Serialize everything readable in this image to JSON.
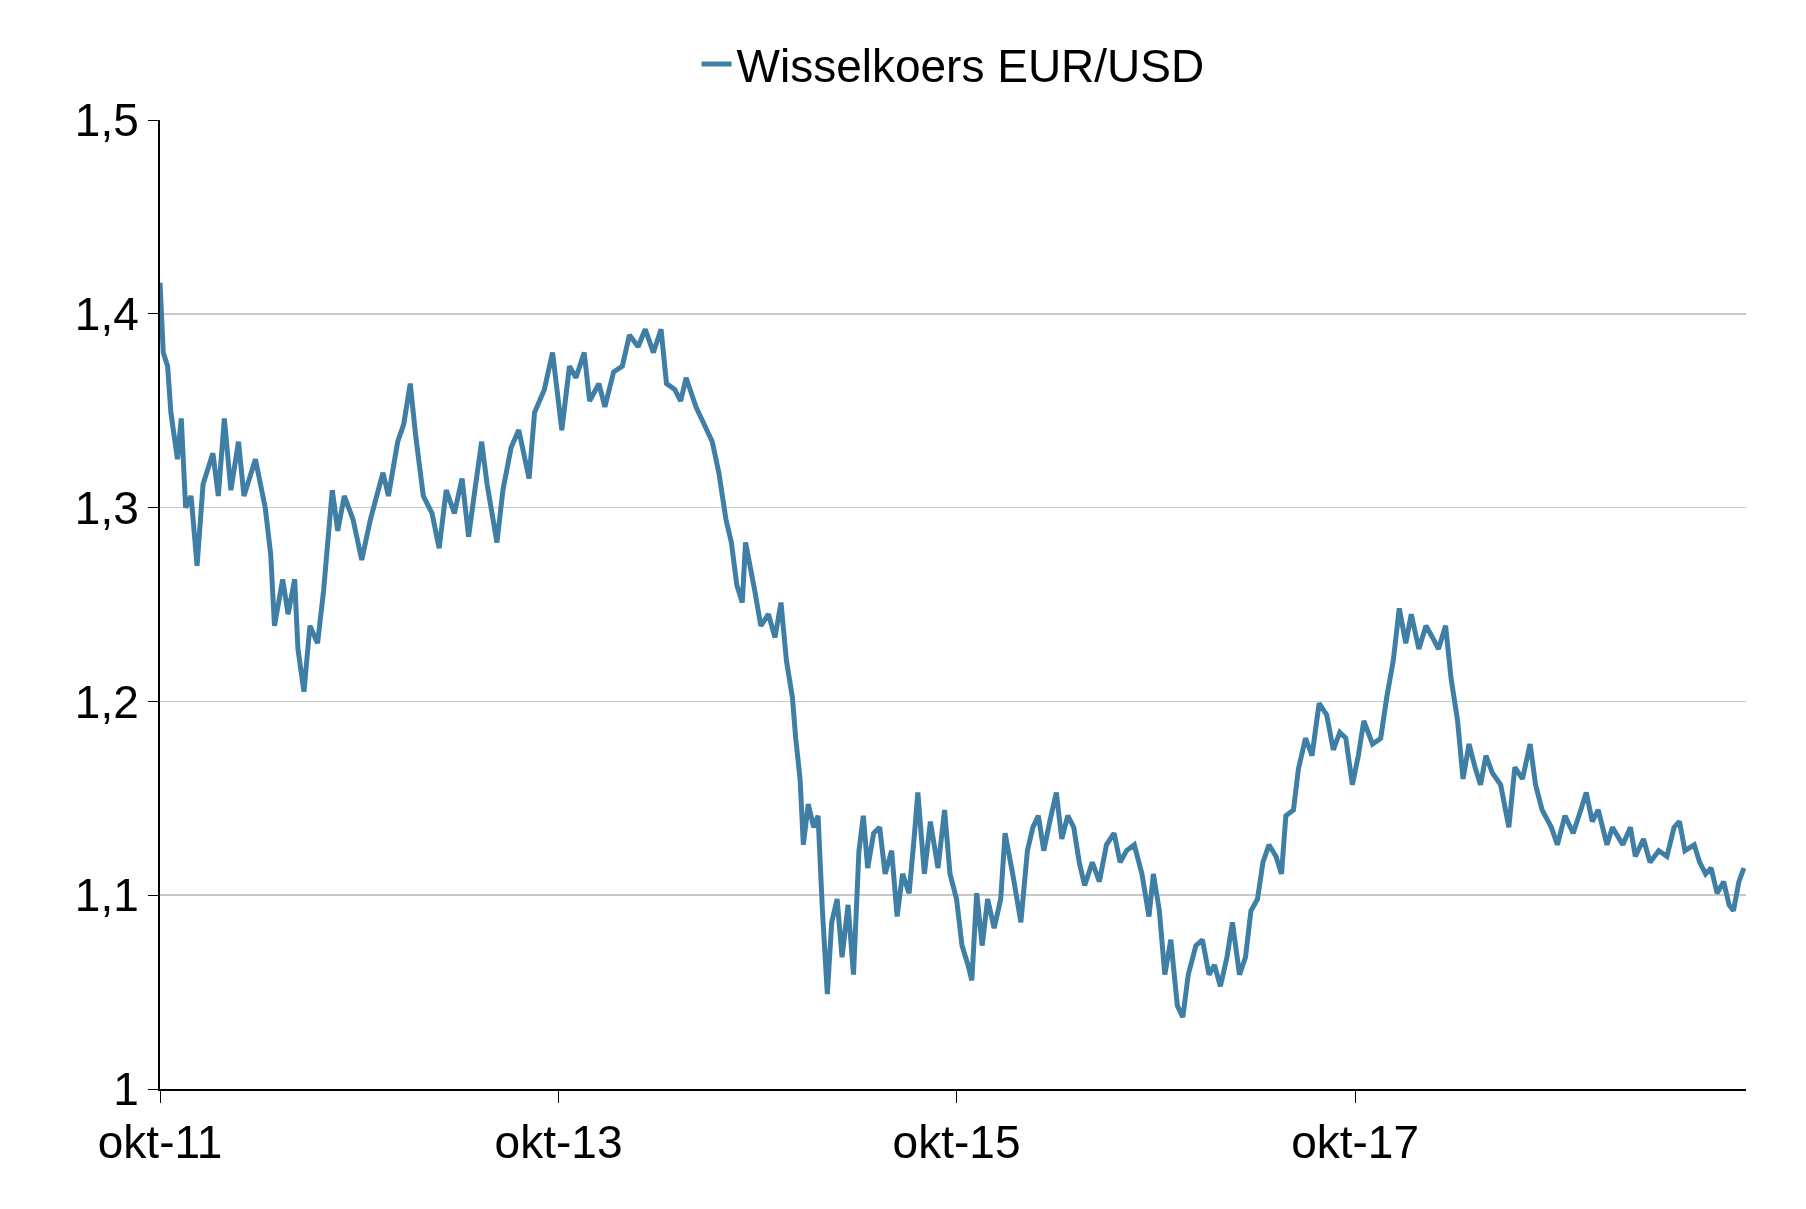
{
  "chart_data": {
    "type": "line",
    "legend": "top",
    "grid": "y",
    "marker": "none",
    "line_style": "solid",
    "xlim": [
      "2011-10-01",
      "2019-09-18"
    ],
    "xticks": [
      {
        "value": "2011-10-01",
        "label": "okt-11"
      },
      {
        "value": "2013-10-01",
        "label": "okt-13"
      },
      {
        "value": "2015-10-01",
        "label": "okt-15"
      },
      {
        "value": "2017-10-01",
        "label": "okt-17"
      }
    ],
    "ylim": [
      1,
      1.5
    ],
    "yticks": [
      1,
      {
        "value": 1.1,
        "label": "1,1"
      },
      {
        "value": 1.2,
        "label": "1,2"
      },
      {
        "value": 1.3,
        "label": "1,3"
      },
      {
        "value": 1.4,
        "label": "1,4"
      },
      {
        "value": 1.5,
        "label": "1,5"
      }
    ],
    "x": [
      "2011-10-01",
      "2011-10-07",
      "2011-10-15",
      "2011-10-21",
      "2011-11-02",
      "2011-11-09",
      "2011-11-17",
      "2011-11-27",
      "2011-12-08",
      "2011-12-19",
      "2012-01-06",
      "2012-01-16",
      "2012-01-27",
      "2012-02-08",
      "2012-02-22",
      "2012-03-03",
      "2012-03-24",
      "2012-04-11",
      "2012-04-21",
      "2012-04-28",
      "2012-05-13",
      "2012-05-23",
      "2012-06-04",
      "2012-06-10",
      "2012-06-21",
      "2012-07-02",
      "2012-07-16",
      "2012-07-27",
      "2012-08-12",
      "2012-08-22",
      "2012-09-03",
      "2012-09-19",
      "2012-10-05",
      "2012-10-21",
      "2012-11-13",
      "2012-11-23",
      "2012-12-10",
      "2012-12-21",
      "2013-01-02",
      "2013-01-12",
      "2013-01-26",
      "2013-02-11",
      "2013-02-24",
      "2013-03-09",
      "2013-03-24",
      "2013-04-07",
      "2013-04-19",
      "2013-05-02",
      "2013-05-13",
      "2013-05-23",
      "2013-06-10",
      "2013-06-21",
      "2013-07-06",
      "2013-07-20",
      "2013-08-08",
      "2013-08-18",
      "2013-09-05",
      "2013-09-20",
      "2013-10-07",
      "2013-10-21",
      "2013-11-02",
      "2013-11-17",
      "2013-11-27",
      "2013-12-14",
      "2013-12-25",
      "2014-01-10",
      "2014-01-26",
      "2014-02-08",
      "2014-02-24",
      "2014-03-09",
      "2014-03-24",
      "2014-04-07",
      "2014-04-17",
      "2014-05-02",
      "2014-05-13",
      "2014-05-23",
      "2014-06-10",
      "2014-06-25",
      "2014-07-10",
      "2014-07-22",
      "2014-08-04",
      "2014-08-14",
      "2014-08-24",
      "2014-09-03",
      "2014-09-09",
      "2014-09-26",
      "2014-10-07",
      "2014-10-21",
      "2014-11-02",
      "2014-11-13",
      "2014-11-23",
      "2014-12-04",
      "2014-12-10",
      "2014-12-18",
      "2014-12-24",
      "2015-01-02",
      "2015-01-12",
      "2015-01-20",
      "2015-01-28",
      "2015-02-06",
      "2015-02-14",
      "2015-02-24",
      "2015-03-05",
      "2015-03-16",
      "2015-03-26",
      "2015-04-05",
      "2015-04-13",
      "2015-04-21",
      "2015-05-02",
      "2015-05-13",
      "2015-05-23",
      "2015-06-04",
      "2015-06-14",
      "2015-06-24",
      "2015-07-06",
      "2015-07-16",
      "2015-07-22",
      "2015-08-03",
      "2015-08-14",
      "2015-08-28",
      "2015-09-09",
      "2015-09-19",
      "2015-10-01",
      "2015-10-11",
      "2015-10-22",
      "2015-10-29",
      "2015-11-07",
      "2015-11-17",
      "2015-11-27",
      "2015-12-09",
      "2015-12-21",
      "2015-12-29",
      "2016-01-12",
      "2016-01-27",
      "2016-02-08",
      "2016-02-18",
      "2016-02-28",
      "2016-03-09",
      "2016-03-20",
      "2016-04-01",
      "2016-04-11",
      "2016-04-22",
      "2016-05-03",
      "2016-05-13",
      "2016-05-23",
      "2016-06-06",
      "2016-06-19",
      "2016-07-02",
      "2016-07-16",
      "2016-07-27",
      "2016-08-08",
      "2016-08-22",
      "2016-09-05",
      "2016-09-18",
      "2016-09-26",
      "2016-10-07",
      "2016-10-17",
      "2016-10-28",
      "2016-11-09",
      "2016-11-19",
      "2016-11-29",
      "2016-12-13",
      "2016-12-25",
      "2017-01-06",
      "2017-01-16",
      "2017-01-27",
      "2017-02-08",
      "2017-02-18",
      "2017-03-03",
      "2017-03-14",
      "2017-03-24",
      "2017-04-05",
      "2017-04-15",
      "2017-04-26",
      "2017-05-09",
      "2017-05-19",
      "2017-05-27",
      "2017-06-10",
      "2017-06-19",
      "2017-07-02",
      "2017-07-14",
      "2017-07-27",
      "2017-08-10",
      "2017-08-22",
      "2017-09-03",
      "2017-09-14",
      "2017-09-26",
      "2017-10-07",
      "2017-10-17",
      "2017-11-02",
      "2017-11-17",
      "2017-11-28",
      "2017-12-10",
      "2017-12-21",
      "2018-01-02",
      "2018-01-12",
      "2018-01-26",
      "2018-02-08",
      "2018-02-20",
      "2018-03-03",
      "2018-03-16",
      "2018-03-26",
      "2018-04-07",
      "2018-04-17",
      "2018-04-28",
      "2018-05-09",
      "2018-05-19",
      "2018-05-29",
      "2018-06-10",
      "2018-06-25",
      "2018-07-10",
      "2018-07-21",
      "2018-08-04",
      "2018-08-18",
      "2018-08-28",
      "2018-09-09",
      "2018-09-26",
      "2018-10-07",
      "2018-10-21",
      "2018-11-05",
      "2018-11-19",
      "2018-11-29",
      "2018-12-10",
      "2018-12-21",
      "2019-01-06",
      "2019-01-16",
      "2019-02-04",
      "2019-02-18",
      "2019-02-27",
      "2019-03-14",
      "2019-03-26",
      "2019-04-11",
      "2019-04-26",
      "2019-05-09",
      "2019-05-19",
      "2019-05-29",
      "2019-06-15",
      "2019-06-25",
      "2019-07-06",
      "2019-07-16",
      "2019-07-27",
      "2019-08-08",
      "2019-08-18",
      "2019-08-26",
      "2019-09-05",
      "2019-09-14"
    ],
    "series": [
      {
        "name": "Wisselkoers EUR/USD",
        "color": "#3f7fa5",
        "values": [
          1.416,
          1.38,
          1.373,
          1.349,
          1.325,
          1.346,
          1.3,
          1.306,
          1.27,
          1.312,
          1.328,
          1.306,
          1.346,
          1.309,
          1.334,
          1.306,
          1.325,
          1.3,
          1.276,
          1.239,
          1.263,
          1.245,
          1.263,
          1.227,
          1.205,
          1.239,
          1.23,
          1.257,
          1.309,
          1.288,
          1.306,
          1.294,
          1.273,
          1.294,
          1.318,
          1.306,
          1.334,
          1.343,
          1.364,
          1.337,
          1.306,
          1.297,
          1.279,
          1.309,
          1.297,
          1.315,
          1.285,
          1.312,
          1.334,
          1.312,
          1.282,
          1.309,
          1.331,
          1.34,
          1.315,
          1.349,
          1.361,
          1.38,
          1.34,
          1.373,
          1.367,
          1.38,
          1.355,
          1.364,
          1.352,
          1.37,
          1.373,
          1.389,
          1.383,
          1.392,
          1.38,
          1.392,
          1.364,
          1.361,
          1.355,
          1.367,
          1.352,
          1.343,
          1.334,
          1.318,
          1.294,
          1.282,
          1.26,
          1.251,
          1.282,
          1.257,
          1.239,
          1.245,
          1.233,
          1.251,
          1.221,
          1.202,
          1.181,
          1.16,
          1.126,
          1.147,
          1.135,
          1.141,
          1.092,
          1.049,
          1.086,
          1.098,
          1.068,
          1.095,
          1.059,
          1.123,
          1.141,
          1.114,
          1.132,
          1.135,
          1.111,
          1.123,
          1.089,
          1.111,
          1.101,
          1.132,
          1.153,
          1.111,
          1.138,
          1.114,
          1.144,
          1.111,
          1.098,
          1.074,
          1.064,
          1.056,
          1.101,
          1.074,
          1.098,
          1.083,
          1.098,
          1.132,
          1.111,
          1.086,
          1.123,
          1.135,
          1.141,
          1.123,
          1.138,
          1.153,
          1.129,
          1.141,
          1.135,
          1.117,
          1.105,
          1.117,
          1.107,
          1.126,
          1.132,
          1.117,
          1.123,
          1.126,
          1.111,
          1.089,
          1.111,
          1.092,
          1.059,
          1.077,
          1.043,
          1.037,
          1.059,
          1.074,
          1.077,
          1.059,
          1.064,
          1.053,
          1.068,
          1.086,
          1.059,
          1.068,
          1.092,
          1.098,
          1.117,
          1.126,
          1.12,
          1.111,
          1.141,
          1.144,
          1.165,
          1.181,
          1.172,
          1.199,
          1.193,
          1.175,
          1.184,
          1.181,
          1.157,
          1.172,
          1.19,
          1.178,
          1.181,
          1.202,
          1.221,
          1.248,
          1.23,
          1.245,
          1.227,
          1.239,
          1.233,
          1.227,
          1.239,
          1.212,
          1.19,
          1.16,
          1.178,
          1.166,
          1.157,
          1.172,
          1.163,
          1.157,
          1.135,
          1.166,
          1.16,
          1.178,
          1.157,
          1.144,
          1.135,
          1.126,
          1.141,
          1.132,
          1.144,
          1.153,
          1.138,
          1.144,
          1.126,
          1.135,
          1.126,
          1.135,
          1.12,
          1.129,
          1.117,
          1.123,
          1.12,
          1.135,
          1.138,
          1.123,
          1.126,
          1.117,
          1.111,
          1.114,
          1.101,
          1.107,
          1.095,
          1.092,
          1.107,
          1.114
        ]
      }
    ]
  }
}
